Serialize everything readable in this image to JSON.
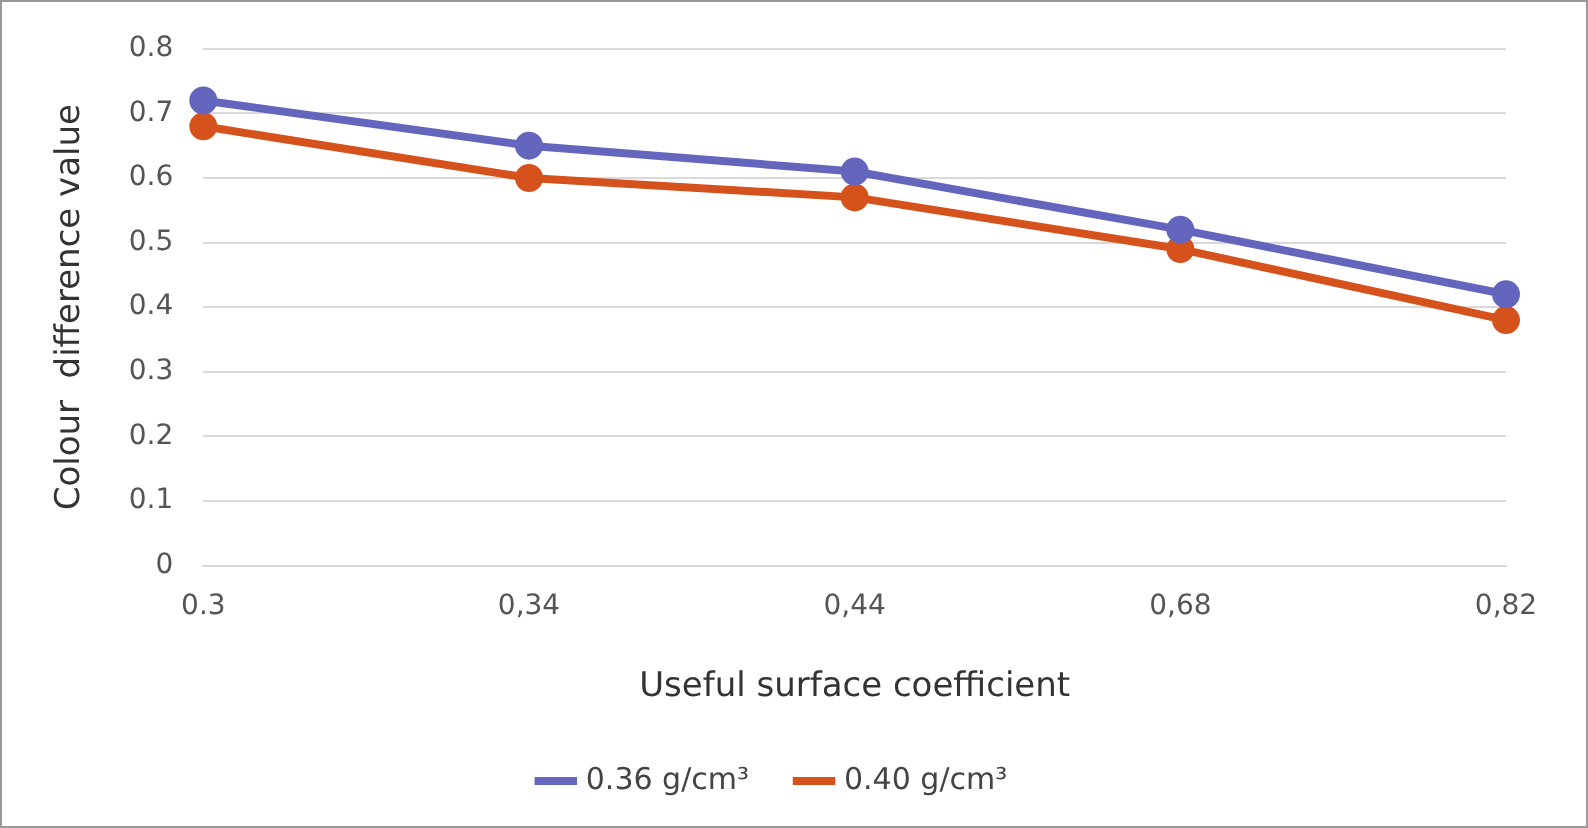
{
  "chart_data": {
    "type": "line",
    "xlabel": "Useful surface coefficient",
    "ylabel": "Colour  difference value",
    "categories": [
      "0.3",
      "0,34",
      "0,44",
      "0,68",
      "0,82"
    ],
    "series": [
      {
        "name": "0.36 g/cm³",
        "color": "#6466bd",
        "values": [
          0.72,
          0.65,
          0.61,
          0.52,
          0.42
        ]
      },
      {
        "name": "0.40 g/cm³",
        "color": "#d6521c",
        "values": [
          0.68,
          0.6,
          0.57,
          0.49,
          0.38
        ]
      }
    ],
    "ylim": [
      0,
      0.8
    ],
    "yticks": [
      0,
      0.1,
      0.2,
      0.3,
      0.4,
      0.5,
      0.6,
      0.7,
      0.8
    ],
    "grid": "y",
    "legend": "bottom",
    "marker": "circle",
    "line_style": "solid"
  }
}
